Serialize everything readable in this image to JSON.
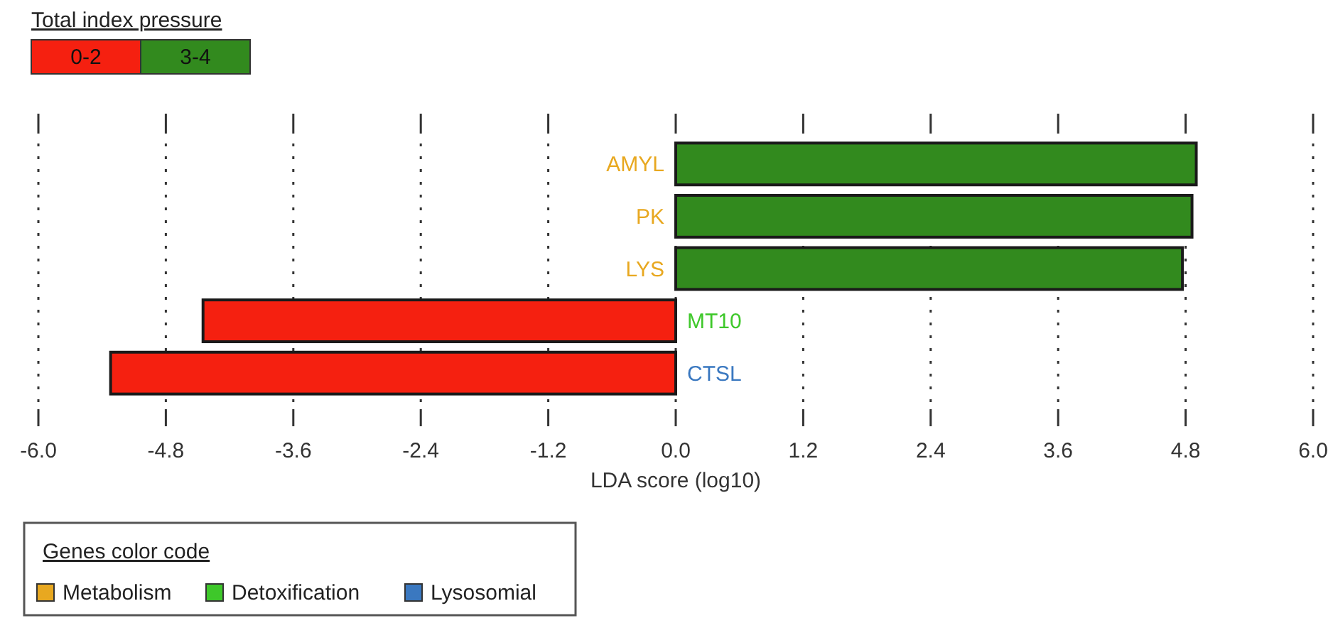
{
  "chart_data": [
    {
      "type": "bar",
      "orientation": "horizontal",
      "xlabel": "LDA score (log10)",
      "legend_title": "Total index pressure",
      "legend": "top left",
      "grid": "x",
      "categories": [
        "AMYL",
        "PK",
        "LYS",
        "MT10",
        "CTSL"
      ],
      "xlim": [
        -6,
        6
      ],
      "xticks": [
        {
          "value": -6,
          "label": "-6.0"
        },
        -4.8,
        -3.6,
        -2.4,
        -1.2,
        {
          "value": 0,
          "label": "0.0"
        },
        1.2,
        2.4,
        3.6,
        4.8,
        {
          "value": 6,
          "label": "6.0"
        }
      ],
      "series": [
        {
          "name": "0-2",
          "color": "#f52010",
          "values": [
            null,
            null,
            null,
            -4.45,
            -5.32
          ]
        },
        {
          "name": "3-4",
          "color": "#328a1e",
          "values": [
            4.9,
            4.86,
            4.77,
            null,
            null
          ]
        }
      ]
    },
    {
      "type": "other",
      "title": "Genes color code",
      "categories": [
        "Metabolism",
        "Detoxification",
        "Lysosomial"
      ],
      "colors": [
        "#e8a820",
        "#3ec82a",
        "#3a78c0"
      ]
    }
  ]
}
